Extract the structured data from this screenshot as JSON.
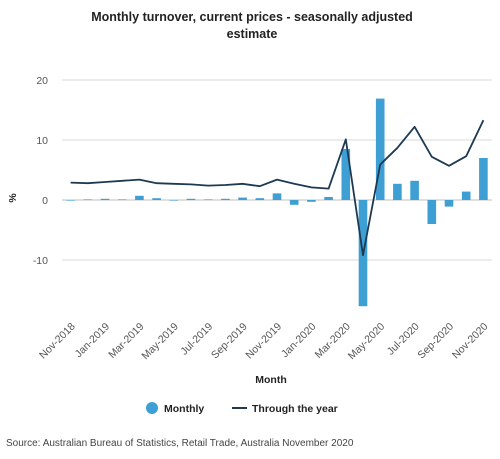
{
  "chart_data": {
    "type": "bar",
    "title_line1": "Monthly turnover, current prices - seasonally adjusted",
    "title_line2": "estimate",
    "xlabel": "Month",
    "ylabel": "%",
    "ylim": [
      -20,
      20
    ],
    "yticks": [
      20,
      10,
      0,
      -10
    ],
    "grid": true,
    "legend_position": "bottom",
    "categories": [
      "Nov-2018",
      "Dec-2018",
      "Jan-2019",
      "Feb-2019",
      "Mar-2019",
      "Apr-2019",
      "May-2019",
      "Jun-2019",
      "Jul-2019",
      "Aug-2019",
      "Sep-2019",
      "Oct-2019",
      "Nov-2019",
      "Dec-2019",
      "Jan-2020",
      "Feb-2020",
      "Mar-2020",
      "Apr-2020",
      "May-2020",
      "Jun-2020",
      "Jul-2020",
      "Aug-2020",
      "Sep-2020",
      "Oct-2020",
      "Nov-2020"
    ],
    "tick_labels": [
      "Nov-2018",
      "Jan-2019",
      "Mar-2019",
      "May-2019",
      "Jul-2019",
      "Sep-2019",
      "Nov-2019",
      "Jan-2020",
      "Mar-2020",
      "May-2020",
      "Jul-2020",
      "Sep-2020",
      "Nov-2020"
    ],
    "series": [
      {
        "name": "Monthly",
        "kind": "bar",
        "color": "#3d9fd3",
        "values": [
          0.0,
          0.1,
          0.2,
          0.1,
          0.7,
          0.3,
          0.0,
          0.2,
          0.1,
          0.2,
          0.4,
          0.3,
          1.1,
          -0.8,
          -0.3,
          0.5,
          8.5,
          -17.7,
          16.9,
          2.7,
          3.2,
          -4.0,
          -1.1,
          1.4,
          7.0
        ]
      },
      {
        "name": "Through the year",
        "kind": "line",
        "color": "#1e3a52",
        "values": [
          2.9,
          2.8,
          3.0,
          3.2,
          3.4,
          2.8,
          2.7,
          2.6,
          2.4,
          2.5,
          2.7,
          2.3,
          3.4,
          2.7,
          2.1,
          1.9,
          10.1,
          -9.2,
          5.9,
          8.7,
          12.2,
          7.2,
          5.7,
          7.3,
          13.3
        ]
      }
    ]
  },
  "source": "Source: Australian Bureau of Statistics, Retail Trade, Australia November 2020"
}
